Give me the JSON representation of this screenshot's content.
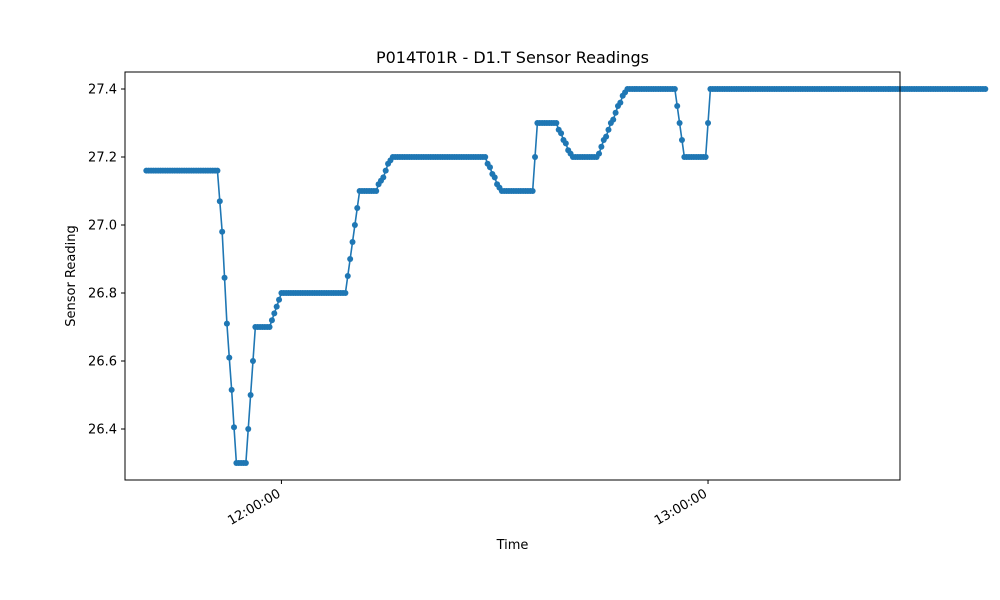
{
  "chart_data": {
    "type": "line",
    "title": "P014T01R - D1.T Sensor Readings",
    "xlabel": "Time",
    "ylabel": "Sensor Reading",
    "x_ticks": [
      {
        "time": "12:00:00",
        "label": "12:00:00"
      },
      {
        "time": "13:00:00",
        "label": "13:00:00"
      }
    ],
    "y_ticks": [
      26.4,
      26.6,
      26.8,
      27.0,
      27.2,
      27.4
    ],
    "xlim": [
      "11:38:00",
      "13:27:00"
    ],
    "ylim": [
      26.25,
      27.45
    ],
    "grid": false,
    "series": [
      {
        "color": "#1f77b4",
        "points": [
          [
            "11:41:00",
            27.16
          ],
          [
            "11:50:00",
            27.16
          ],
          [
            "11:51:00",
            27.16
          ],
          [
            "11:51:20",
            27.07
          ],
          [
            "11:51:40",
            26.98
          ],
          [
            "11:52:00",
            26.845
          ],
          [
            "11:52:20",
            26.71
          ],
          [
            "11:52:40",
            26.61
          ],
          [
            "11:53:00",
            26.515
          ],
          [
            "11:53:20",
            26.405
          ],
          [
            "11:53:40",
            26.3
          ],
          [
            "11:55:00",
            26.3
          ],
          [
            "11:55:20",
            26.4
          ],
          [
            "11:55:40",
            26.5
          ],
          [
            "11:56:00",
            26.6
          ],
          [
            "11:56:20",
            26.7
          ],
          [
            "11:58:20",
            26.7
          ],
          [
            "11:58:40",
            26.72
          ],
          [
            "11:59:00",
            26.74
          ],
          [
            "11:59:20",
            26.76
          ],
          [
            "11:59:40",
            26.78
          ],
          [
            "12:00:00",
            26.8
          ],
          [
            "12:09:00",
            26.8
          ],
          [
            "12:09:20",
            26.85
          ],
          [
            "12:09:40",
            26.9
          ],
          [
            "12:10:00",
            26.95
          ],
          [
            "12:10:20",
            27.0
          ],
          [
            "12:10:40",
            27.05
          ],
          [
            "12:11:00",
            27.1
          ],
          [
            "12:13:20",
            27.1
          ],
          [
            "12:13:40",
            27.12
          ],
          [
            "12:14:00",
            27.13
          ],
          [
            "12:14:20",
            27.14
          ],
          [
            "12:14:40",
            27.16
          ],
          [
            "12:15:00",
            27.18
          ],
          [
            "12:15:40",
            27.2
          ],
          [
            "12:28:40",
            27.2
          ],
          [
            "12:29:00",
            27.18
          ],
          [
            "12:29:20",
            27.17
          ],
          [
            "12:29:40",
            27.15
          ],
          [
            "12:30:00",
            27.14
          ],
          [
            "12:30:20",
            27.12
          ],
          [
            "12:30:40",
            27.11
          ],
          [
            "12:31:00",
            27.1
          ],
          [
            "12:35:20",
            27.1
          ],
          [
            "12:35:40",
            27.2
          ],
          [
            "12:36:00",
            27.3
          ],
          [
            "12:38:40",
            27.3
          ],
          [
            "12:39:00",
            27.28
          ],
          [
            "12:39:20",
            27.27
          ],
          [
            "12:39:40",
            27.25
          ],
          [
            "12:40:00",
            27.24
          ],
          [
            "12:40:20",
            27.22
          ],
          [
            "12:40:40",
            27.21
          ],
          [
            "12:41:00",
            27.2
          ],
          [
            "12:44:20",
            27.2
          ],
          [
            "12:44:40",
            27.21
          ],
          [
            "12:45:00",
            27.23
          ],
          [
            "12:45:20",
            27.25
          ],
          [
            "12:45:40",
            27.26
          ],
          [
            "12:46:00",
            27.28
          ],
          [
            "12:46:20",
            27.3
          ],
          [
            "12:46:40",
            27.31
          ],
          [
            "12:47:00",
            27.33
          ],
          [
            "12:47:20",
            27.35
          ],
          [
            "12:47:40",
            27.36
          ],
          [
            "12:48:00",
            27.38
          ],
          [
            "12:48:20",
            27.39
          ],
          [
            "12:48:40",
            27.4
          ],
          [
            "12:55:20",
            27.4
          ],
          [
            "12:55:40",
            27.35
          ],
          [
            "12:56:00",
            27.3
          ],
          [
            "12:56:20",
            27.25
          ],
          [
            "12:56:40",
            27.2
          ],
          [
            "12:59:40",
            27.2
          ],
          [
            "13:00:00",
            27.3
          ],
          [
            "13:00:20",
            27.4
          ],
          [
            "13:39:00",
            27.4
          ]
        ]
      }
    ]
  }
}
